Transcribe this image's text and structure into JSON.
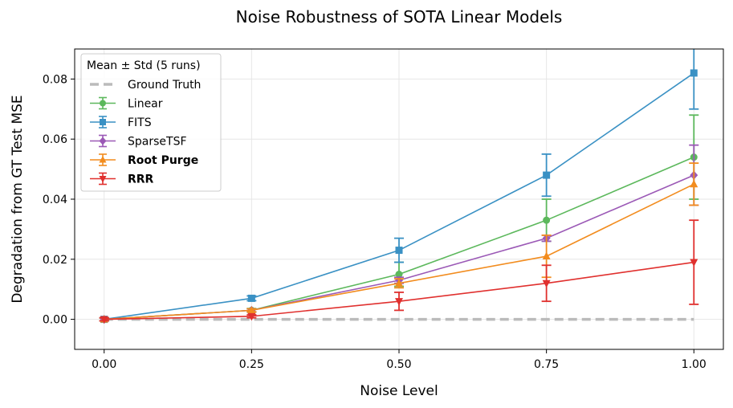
{
  "chart_data": {
    "type": "line",
    "title": "Noise Robustness of SOTA Linear Models",
    "xlabel": "Noise Level",
    "ylabel": "Degradation from GT Test MSE",
    "x": [
      0.0,
      0.25,
      0.5,
      0.75,
      1.0
    ],
    "xticks": [
      "0.00",
      "0.25",
      "0.50",
      "0.75",
      "1.00"
    ],
    "yticks": [
      "0.00",
      "0.02",
      "0.04",
      "0.06",
      "0.08"
    ],
    "ytick_values": [
      0.0,
      0.02,
      0.04,
      0.06,
      0.08
    ],
    "xlim": [
      -0.05,
      1.05
    ],
    "ylim": [
      -0.01,
      0.09
    ],
    "grid": true,
    "legend": {
      "title": "Mean ± Std (5 runs)",
      "position": "top-left"
    },
    "series": [
      {
        "name": "Ground Truth",
        "style": "dashed",
        "marker": "none",
        "color": "#bbbbbb",
        "bold": false,
        "values": [
          0,
          0,
          0,
          0,
          0
        ],
        "err": null
      },
      {
        "name": "Linear",
        "style": "solid",
        "marker": "circle",
        "color": "#5cb85c",
        "bold": false,
        "values": [
          0.0,
          0.003,
          0.015,
          0.033,
          0.054
        ],
        "err": [
          0.0005,
          0.0006,
          0.004,
          0.007,
          0.014
        ]
      },
      {
        "name": "FITS",
        "style": "solid",
        "marker": "square",
        "color": "#3a91c4",
        "bold": false,
        "values": [
          0.0,
          0.007,
          0.023,
          0.048,
          0.082
        ],
        "err": [
          0.0005,
          0.0008,
          0.004,
          0.007,
          0.012
        ]
      },
      {
        "name": "SparseTSF",
        "style": "solid",
        "marker": "diamond",
        "color": "#9b59b6",
        "bold": false,
        "values": [
          0.0,
          0.003,
          0.013,
          0.027,
          0.048
        ],
        "err": [
          0.0005,
          0.0005,
          0.001,
          0.001,
          0.01
        ]
      },
      {
        "name": "Root Purge",
        "style": "solid",
        "marker": "triangle-up",
        "color": "#f28c1e",
        "bold": true,
        "values": [
          0.0,
          0.003,
          0.012,
          0.021,
          0.045
        ],
        "err": [
          0.0005,
          0.0005,
          0.0015,
          0.007,
          0.007
        ]
      },
      {
        "name": "RRR",
        "style": "solid",
        "marker": "triangle-down",
        "color": "#e0302e",
        "bold": true,
        "values": [
          0.0,
          0.001,
          0.006,
          0.012,
          0.019
        ],
        "err": [
          0.0005,
          0.0005,
          0.003,
          0.006,
          0.014
        ]
      }
    ]
  }
}
